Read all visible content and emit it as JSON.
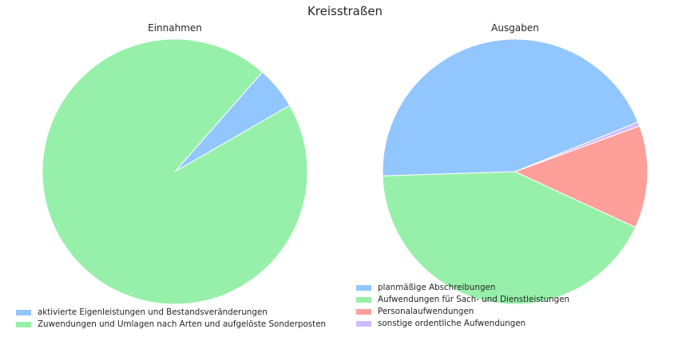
{
  "title": "Kreisstraßen",
  "chart_data": [
    {
      "type": "pie",
      "title": "Einnahmen",
      "startangle_deg": 30,
      "legend_position": "bottom-left",
      "slices": [
        {
          "label": "aktivierte Eigenleistungen und Bestandsveränderungen",
          "value": 5.2,
          "color": "#92c6ff"
        },
        {
          "label": "Zuwendungen und Umlagen nach Arten und aufgelöste Sonderposten",
          "value": 94.8,
          "color": "#97f0aa"
        }
      ]
    },
    {
      "type": "pie",
      "title": "Ausgaben",
      "startangle_deg": 22,
      "legend_position": "bottom-left",
      "slices": [
        {
          "label": "planmäßige Abschreibungen",
          "value": 44.4,
          "color": "#92c6ff"
        },
        {
          "label": "Aufwendungen für Sach- und Dienstleistungen",
          "value": 42.6,
          "color": "#97f0aa"
        },
        {
          "label": "Personalaufwendungen",
          "value": 12.5,
          "color": "#ff9f9a"
        },
        {
          "label": "sonstige ordentliche Aufwendungen",
          "value": 0.5,
          "color": "#d0bbff"
        }
      ]
    }
  ]
}
